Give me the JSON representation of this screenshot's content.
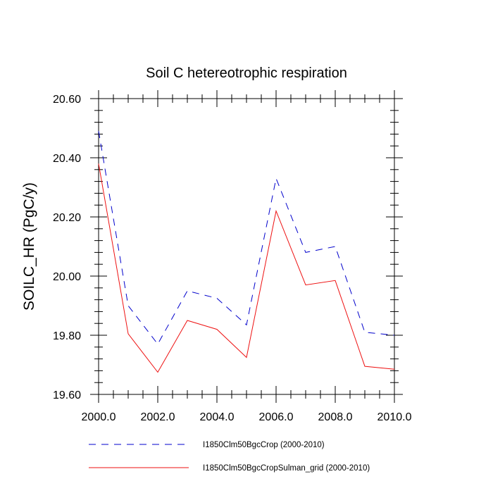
{
  "chart_data": {
    "type": "line",
    "title": "Soil C hetereotrophic respiration",
    "xlabel": "",
    "ylabel": "SOILC_HR  (PgC/y)",
    "xlim": [
      2000,
      2010
    ],
    "ylim": [
      19.6,
      20.6
    ],
    "x_ticks": [
      2000,
      2002,
      2004,
      2006,
      2008,
      2010
    ],
    "x_tick_labels": [
      "2000.0",
      "2002.0",
      "2004.0",
      "2006.0",
      "2008.0",
      "2010.0"
    ],
    "y_ticks": [
      19.6,
      19.8,
      20.0,
      20.2,
      20.4,
      20.6
    ],
    "y_tick_labels": [
      "19.60",
      "19.80",
      "20.00",
      "20.20",
      "20.40",
      "20.60"
    ],
    "grid": false,
    "legend_position": "bottom",
    "x": [
      2000,
      2001,
      2002,
      2003,
      2004,
      2005,
      2006,
      2007,
      2008,
      2009,
      2010
    ],
    "series": [
      {
        "name": "I1850Clm50BgcCrop (2000-2010)",
        "color": "#0000cc",
        "line_style": "dashed",
        "values": [
          20.49,
          19.9,
          19.77,
          19.95,
          19.925,
          19.835,
          20.33,
          20.08,
          20.1,
          19.81,
          19.8
        ]
      },
      {
        "name": "I1850Clm50BgcCropSulman_grid (2000-2010)",
        "color": "#ee1111",
        "line_style": "solid",
        "values": [
          20.38,
          19.805,
          19.675,
          19.85,
          19.82,
          19.725,
          20.22,
          19.97,
          19.985,
          19.695,
          19.685
        ]
      }
    ]
  }
}
